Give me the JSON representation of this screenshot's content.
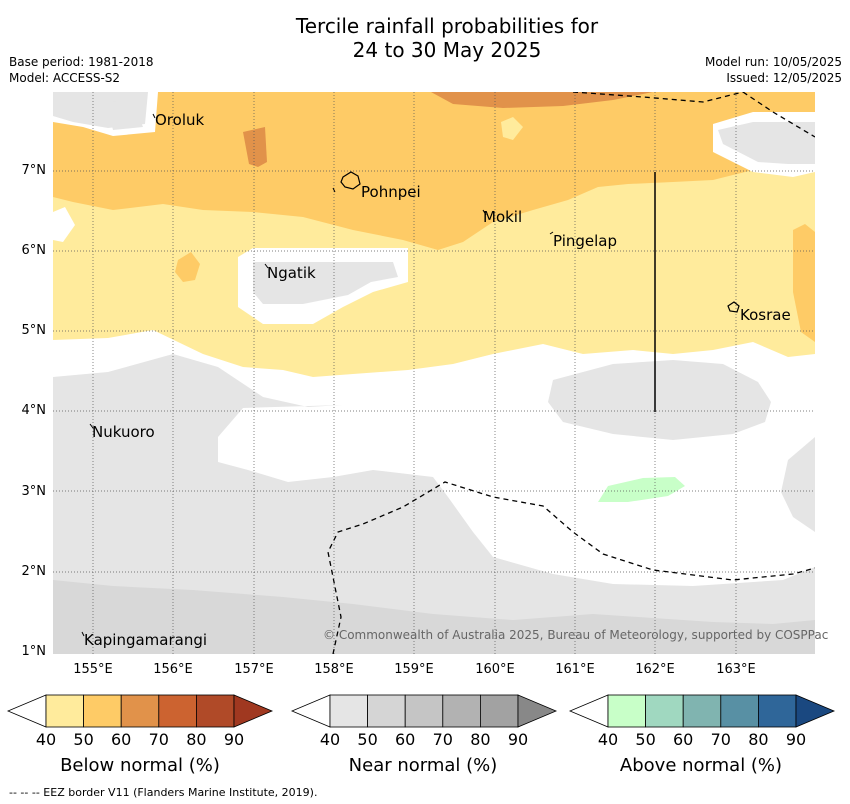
{
  "title_line1": "Tercile rainfall probabilities for",
  "title_line2": "24 to 30 May 2025",
  "meta": {
    "base_period": "Base period: 1981-2018",
    "model": "Model: ACCESS-S2",
    "model_run": "Model run: 10/05/2025",
    "issued": "Issued: 12/05/2025"
  },
  "map": {
    "lat_labels": [
      "7°N",
      "6°N",
      "5°N",
      "4°N",
      "3°N",
      "2°N",
      "1°N"
    ],
    "lon_labels": [
      "155°E",
      "156°E",
      "157°E",
      "158°E",
      "159°E",
      "160°E",
      "161°E",
      "162°E",
      "163°E"
    ],
    "places": {
      "oroluk": "Oroluk",
      "pohnpei": "Pohnpei",
      "mokil": "Mokil",
      "pingelap": "Pingelap",
      "ngatik": "Ngatik",
      "kosrae": "Kosrae",
      "nukuoro": "Nukuoro",
      "kapingamarangi": "Kapingamarangi"
    },
    "copyright": "© Commonwealth of Australia 2025, Bureau of Meteorology, supported by COSPPac",
    "colors": {
      "below_40": "#ffeb9c",
      "below_50": "#fecb66",
      "below_60": "#e1924a",
      "near_40": "#e5e5e5",
      "near_50": "#d5d5d5",
      "above_40": "#c8ffc8"
    }
  },
  "colorbars": {
    "below": {
      "title": "Below normal (%)",
      "ticks": [
        "40",
        "50",
        "60",
        "70",
        "80",
        "90"
      ],
      "colors": [
        "#ffeb9c",
        "#fecb66",
        "#e1924a",
        "#cc6330",
        "#b04a28",
        "#a03820"
      ]
    },
    "near": {
      "title": "Near normal (%)",
      "ticks": [
        "40",
        "50",
        "60",
        "70",
        "80",
        "90"
      ],
      "colors": [
        "#e5e5e5",
        "#d5d5d5",
        "#c5c5c5",
        "#b2b2b2",
        "#a2a2a2",
        "#888888"
      ]
    },
    "above": {
      "title": "Above normal (%)",
      "ticks": [
        "40",
        "50",
        "60",
        "70",
        "80",
        "90"
      ],
      "colors": [
        "#c8ffc8",
        "#a0d8c0",
        "#80b4b0",
        "#5890a4",
        "#2f6699",
        "#1a4880"
      ]
    }
  },
  "footnote": "--  --  -- EEZ border V11 (Flanders Marine Institute, 2019)."
}
